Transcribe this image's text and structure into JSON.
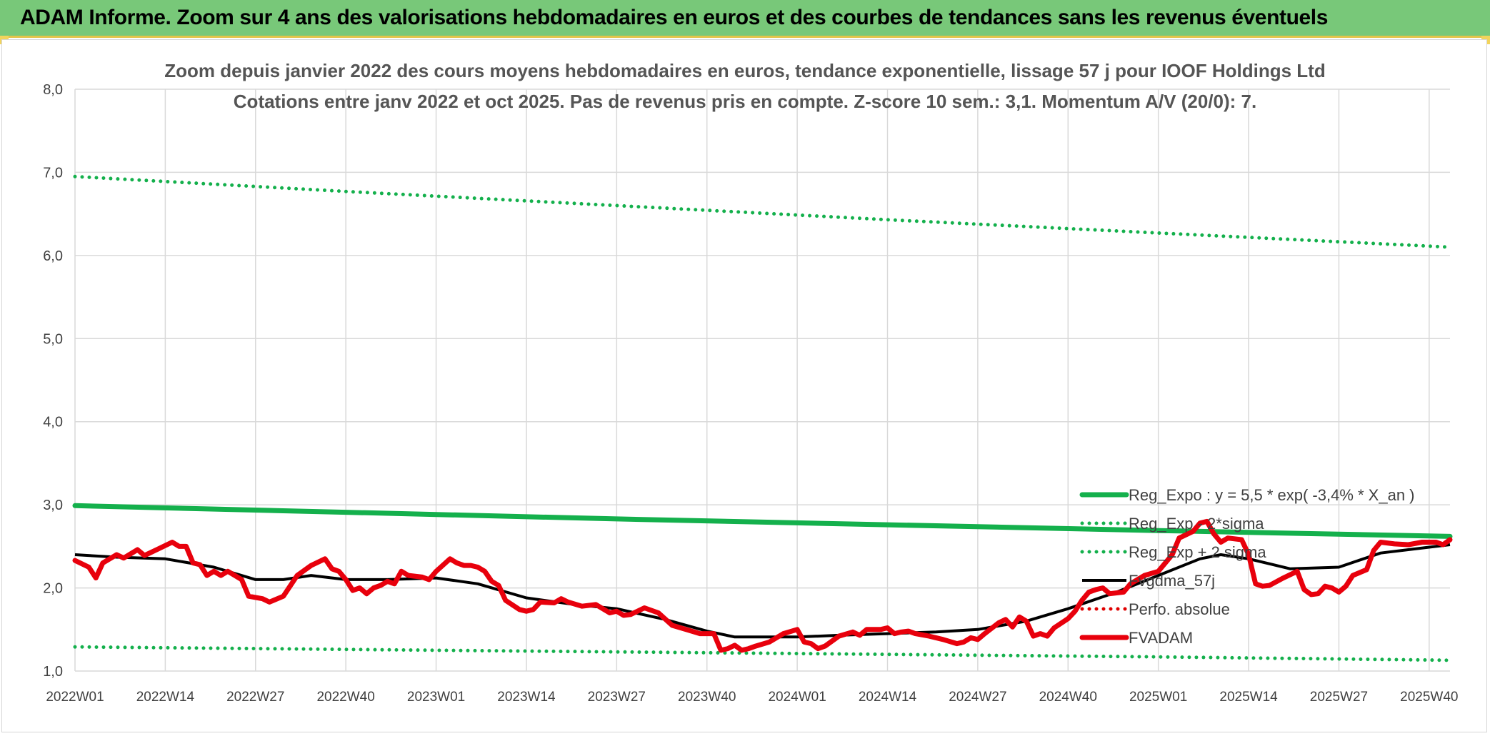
{
  "header": {
    "title": "ADAM Informe. Zoom sur 4 ans des valorisations hebdomadaires en euros et des courbes de tendances sans les revenus éventuels"
  },
  "chart_data": {
    "type": "line",
    "title": "Zoom depuis janvier 2022 des cours moyens hebdomadaires en euros, tendance exponentielle, lissage 57 j pour IOOF Holdings Ltd",
    "subtitle": "Cotations entre janv 2022 et oct 2025. Pas de revenus pris en compte. Z-score 10 sem.: 3,1. Momentum A/V (20/0): 7.",
    "xlabel": "",
    "ylabel": "",
    "ylim": [
      1.0,
      8.0
    ],
    "y_ticks": [
      "1,0",
      "2,0",
      "3,0",
      "4,0",
      "5,0",
      "6,0",
      "7,0",
      "8,0"
    ],
    "x_range": [
      0,
      198
    ],
    "x_ticks": [
      {
        "x": 0,
        "label": "2022W01"
      },
      {
        "x": 13,
        "label": "2022W14"
      },
      {
        "x": 26,
        "label": "2022W27"
      },
      {
        "x": 39,
        "label": "2022W40"
      },
      {
        "x": 52,
        "label": "2023W01"
      },
      {
        "x": 65,
        "label": "2023W14"
      },
      {
        "x": 78,
        "label": "2023W27"
      },
      {
        "x": 91,
        "label": "2023W40"
      },
      {
        "x": 104,
        "label": "2024W01"
      },
      {
        "x": 117,
        "label": "2024W14"
      },
      {
        "x": 130,
        "label": "2024W27"
      },
      {
        "x": 143,
        "label": "2024W40"
      },
      {
        "x": 156,
        "label": "2025W01"
      },
      {
        "x": 169,
        "label": "2025W14"
      },
      {
        "x": 182,
        "label": "2025W27"
      },
      {
        "x": 195,
        "label": "2025W40"
      }
    ],
    "grid": true,
    "legend_position": "right, lower-middle",
    "series": [
      {
        "name": "Reg_Expo : y = 5,5 * exp( -3,4% *  X_an )",
        "color": "#14b04c",
        "style": "solid-thick",
        "points": [
          [
            0,
            2.99
          ],
          [
            39,
            2.91
          ],
          [
            78,
            2.83
          ],
          [
            117,
            2.76
          ],
          [
            156,
            2.69
          ],
          [
            198,
            2.62
          ]
        ]
      },
      {
        "name": "Reg_Exp - 2*sigma",
        "color": "#14b04c",
        "style": "dotted",
        "points": [
          [
            0,
            1.29
          ],
          [
            52,
            1.25
          ],
          [
            104,
            1.21
          ],
          [
            156,
            1.17
          ],
          [
            198,
            1.13
          ]
        ]
      },
      {
        "name": "Reg_Exp + 2 sigma",
        "color": "#14b04c",
        "style": "dotted",
        "points": [
          [
            0,
            6.95
          ],
          [
            39,
            6.77
          ],
          [
            78,
            6.6
          ],
          [
            117,
            6.43
          ],
          [
            156,
            6.27
          ],
          [
            198,
            6.1
          ]
        ]
      },
      {
        "name": "Fvgdma_57j",
        "color": "#000000",
        "style": "solid",
        "points": [
          [
            0,
            2.4
          ],
          [
            6,
            2.37
          ],
          [
            13,
            2.35
          ],
          [
            20,
            2.25
          ],
          [
            26,
            2.1
          ],
          [
            30,
            2.1
          ],
          [
            34,
            2.15
          ],
          [
            39,
            2.1
          ],
          [
            45,
            2.1
          ],
          [
            52,
            2.12
          ],
          [
            58,
            2.05
          ],
          [
            65,
            1.88
          ],
          [
            72,
            1.8
          ],
          [
            78,
            1.75
          ],
          [
            85,
            1.62
          ],
          [
            91,
            1.48
          ],
          [
            95,
            1.41
          ],
          [
            104,
            1.41
          ],
          [
            110,
            1.43
          ],
          [
            117,
            1.45
          ],
          [
            124,
            1.47
          ],
          [
            130,
            1.5
          ],
          [
            137,
            1.6
          ],
          [
            143,
            1.75
          ],
          [
            150,
            1.95
          ],
          [
            156,
            2.15
          ],
          [
            162,
            2.35
          ],
          [
            165,
            2.4
          ],
          [
            169,
            2.35
          ],
          [
            175,
            2.23
          ],
          [
            182,
            2.25
          ],
          [
            188,
            2.42
          ],
          [
            195,
            2.49
          ],
          [
            198,
            2.52
          ]
        ]
      },
      {
        "name": "Perfo. absolue",
        "color": "#e00000",
        "style": "dotted",
        "points": []
      },
      {
        "name": "FVADAM",
        "color": "#e8000c",
        "style": "solid-thick",
        "points": [
          [
            0,
            2.33
          ],
          [
            2,
            2.25
          ],
          [
            3,
            2.12
          ],
          [
            4,
            2.3
          ],
          [
            6,
            2.4
          ],
          [
            7,
            2.36
          ],
          [
            9,
            2.46
          ],
          [
            10,
            2.39
          ],
          [
            12,
            2.47
          ],
          [
            14,
            2.55
          ],
          [
            15,
            2.5
          ],
          [
            16,
            2.5
          ],
          [
            17,
            2.3
          ],
          [
            18,
            2.28
          ],
          [
            19,
            2.15
          ],
          [
            20,
            2.2
          ],
          [
            21,
            2.15
          ],
          [
            22,
            2.2
          ],
          [
            24,
            2.1
          ],
          [
            25,
            1.9
          ],
          [
            27,
            1.87
          ],
          [
            28,
            1.83
          ],
          [
            30,
            1.9
          ],
          [
            32,
            2.15
          ],
          [
            34,
            2.27
          ],
          [
            36,
            2.35
          ],
          [
            37,
            2.23
          ],
          [
            38,
            2.2
          ],
          [
            39,
            2.1
          ],
          [
            40,
            1.97
          ],
          [
            41,
            2.0
          ],
          [
            42,
            1.93
          ],
          [
            43,
            2.0
          ],
          [
            44,
            2.03
          ],
          [
            45,
            2.08
          ],
          [
            46,
            2.05
          ],
          [
            47,
            2.2
          ],
          [
            48,
            2.15
          ],
          [
            50,
            2.13
          ],
          [
            51,
            2.1
          ],
          [
            52,
            2.2
          ],
          [
            54,
            2.35
          ],
          [
            55,
            2.3
          ],
          [
            56,
            2.27
          ],
          [
            57,
            2.27
          ],
          [
            58,
            2.25
          ],
          [
            59,
            2.2
          ],
          [
            60,
            2.08
          ],
          [
            61,
            2.03
          ],
          [
            62,
            1.85
          ],
          [
            64,
            1.74
          ],
          [
            65,
            1.72
          ],
          [
            66,
            1.74
          ],
          [
            67,
            1.83
          ],
          [
            69,
            1.82
          ],
          [
            70,
            1.87
          ],
          [
            71,
            1.83
          ],
          [
            73,
            1.78
          ],
          [
            75,
            1.8
          ],
          [
            77,
            1.7
          ],
          [
            78,
            1.72
          ],
          [
            79,
            1.67
          ],
          [
            80,
            1.68
          ],
          [
            82,
            1.76
          ],
          [
            84,
            1.7
          ],
          [
            86,
            1.55
          ],
          [
            88,
            1.5
          ],
          [
            90,
            1.45
          ],
          [
            92,
            1.45
          ],
          [
            93,
            1.25
          ],
          [
            94,
            1.27
          ],
          [
            95,
            1.31
          ],
          [
            96,
            1.25
          ],
          [
            97,
            1.27
          ],
          [
            98,
            1.3
          ],
          [
            100,
            1.35
          ],
          [
            102,
            1.45
          ],
          [
            104,
            1.5
          ],
          [
            105,
            1.35
          ],
          [
            106,
            1.33
          ],
          [
            107,
            1.27
          ],
          [
            108,
            1.3
          ],
          [
            110,
            1.42
          ],
          [
            112,
            1.47
          ],
          [
            113,
            1.43
          ],
          [
            114,
            1.5
          ],
          [
            116,
            1.5
          ],
          [
            117,
            1.52
          ],
          [
            118,
            1.45
          ],
          [
            119,
            1.47
          ],
          [
            120,
            1.48
          ],
          [
            121,
            1.45
          ],
          [
            123,
            1.42
          ],
          [
            125,
            1.38
          ],
          [
            127,
            1.33
          ],
          [
            128,
            1.35
          ],
          [
            129,
            1.4
          ],
          [
            130,
            1.38
          ],
          [
            131,
            1.45
          ],
          [
            133,
            1.58
          ],
          [
            134,
            1.62
          ],
          [
            135,
            1.53
          ],
          [
            136,
            1.65
          ],
          [
            137,
            1.6
          ],
          [
            138,
            1.42
          ],
          [
            139,
            1.45
          ],
          [
            140,
            1.42
          ],
          [
            141,
            1.52
          ],
          [
            143,
            1.63
          ],
          [
            144,
            1.72
          ],
          [
            145,
            1.85
          ],
          [
            146,
            1.95
          ],
          [
            147,
            1.98
          ],
          [
            148,
            2.0
          ],
          [
            149,
            1.93
          ],
          [
            151,
            1.95
          ],
          [
            152,
            2.05
          ],
          [
            154,
            2.15
          ],
          [
            156,
            2.2
          ],
          [
            158,
            2.4
          ],
          [
            159,
            2.6
          ],
          [
            161,
            2.68
          ],
          [
            162,
            2.78
          ],
          [
            163,
            2.8
          ],
          [
            164,
            2.65
          ],
          [
            165,
            2.55
          ],
          [
            166,
            2.6
          ],
          [
            168,
            2.58
          ],
          [
            169,
            2.4
          ],
          [
            170,
            2.05
          ],
          [
            171,
            2.02
          ],
          [
            172,
            2.03
          ],
          [
            174,
            2.12
          ],
          [
            176,
            2.2
          ],
          [
            177,
            1.98
          ],
          [
            178,
            1.92
          ],
          [
            179,
            1.93
          ],
          [
            180,
            2.02
          ],
          [
            181,
            2.0
          ],
          [
            182,
            1.95
          ],
          [
            183,
            2.02
          ],
          [
            184,
            2.15
          ],
          [
            186,
            2.22
          ],
          [
            187,
            2.45
          ],
          [
            188,
            2.55
          ],
          [
            190,
            2.53
          ],
          [
            192,
            2.52
          ],
          [
            194,
            2.55
          ],
          [
            196,
            2.55
          ],
          [
            197,
            2.52
          ],
          [
            198,
            2.58
          ]
        ]
      }
    ],
    "legend_order": [
      0,
      1,
      2,
      3,
      4,
      5
    ]
  }
}
